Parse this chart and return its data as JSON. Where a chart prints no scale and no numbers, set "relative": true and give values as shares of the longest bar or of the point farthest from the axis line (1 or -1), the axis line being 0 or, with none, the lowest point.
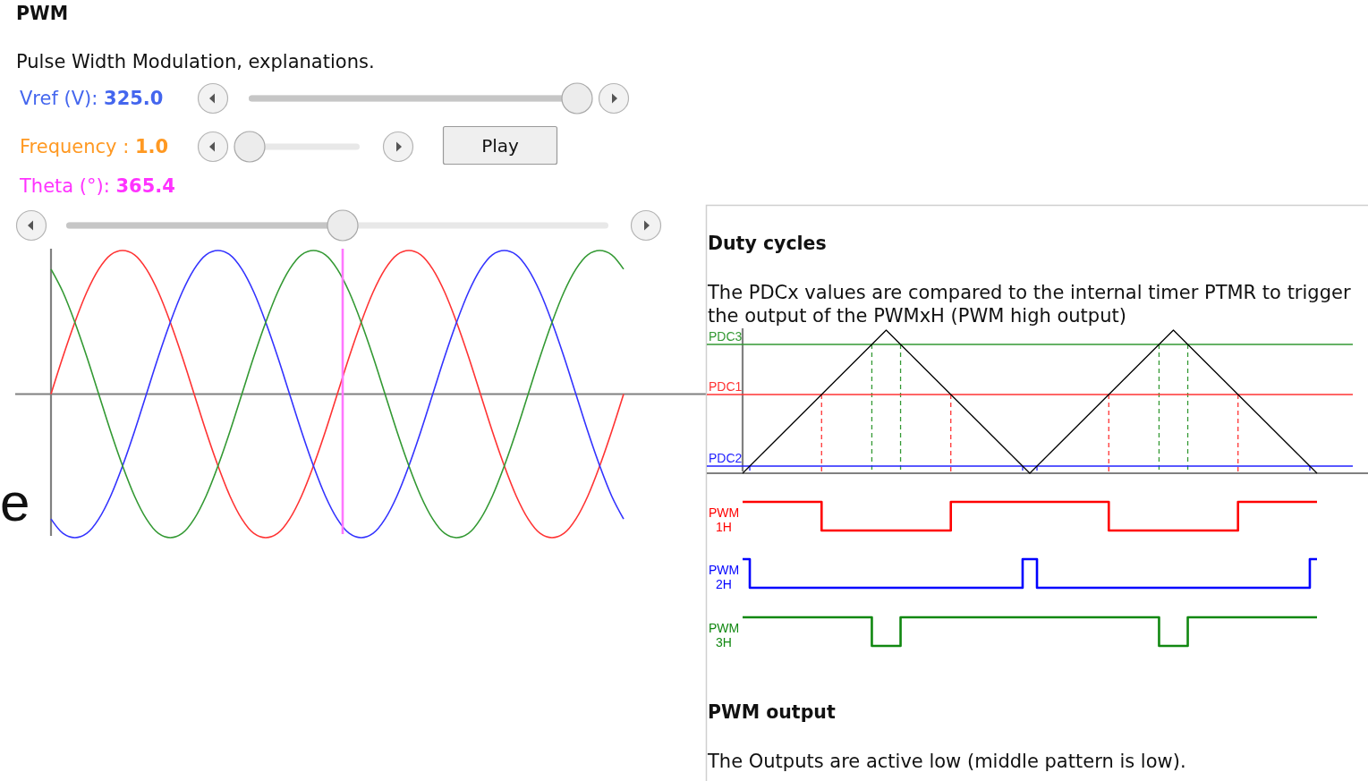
{
  "chart_data": [
    {
      "type": "line",
      "title": "PWM",
      "subtitle": "Pulse Width Modulation, explanations.",
      "annotations": [
        "Vref (V): 325.0",
        "Frequency : 1.0",
        "Theta (°): 365.4",
        "Play",
        "e"
      ],
      "relative": true,
      "categories": [
        null,
        null,
        null,
        null,
        null,
        null,
        null,
        null,
        null,
        null,
        null,
        null,
        null,
        null,
        null,
        null,
        null,
        null,
        null,
        null,
        null,
        null,
        null,
        null,
        null,
        null,
        null,
        null,
        null,
        null,
        null,
        null,
        null,
        null,
        null,
        null,
        null,
        null,
        null,
        null,
        null,
        null,
        null,
        null,
        null,
        null,
        null,
        null,
        null
      ],
      "series": [
        {
          "color": "#ff3333",
          "values": [
            0,
            0.26,
            0.5,
            0.71,
            0.87,
            0.97,
            1,
            0.97,
            0.87,
            0.71,
            0.5,
            0.26,
            0,
            -0.26,
            -0.5,
            -0.71,
            -0.87,
            -0.97,
            -1,
            -0.97,
            -0.87,
            -0.71,
            -0.5,
            -0.26,
            0,
            0.26,
            0.5,
            0.71,
            0.87,
            0.97,
            1,
            0.97,
            0.87,
            0.71,
            0.5,
            0.26,
            0,
            -0.26,
            -0.5,
            -0.71,
            -0.87,
            -0.97,
            -1,
            -0.97,
            -0.87,
            -0.71,
            -0.5,
            -0.26,
            0
          ]
        },
        {
          "color": "#3333ff",
          "values": [
            -0.87,
            -0.97,
            -1,
            -0.97,
            -0.87,
            -0.71,
            -0.5,
            -0.26,
            0,
            0.26,
            0.5,
            0.71,
            0.87,
            0.97,
            1,
            0.97,
            0.87,
            0.71,
            0.5,
            0.26,
            0,
            -0.26,
            -0.5,
            -0.71,
            -0.87,
            -0.97,
            -1,
            -0.97,
            -0.87,
            -0.71,
            -0.5,
            -0.26,
            0,
            0.26,
            0.5,
            0.71,
            0.87,
            0.97,
            1,
            0.97,
            0.87,
            0.71,
            0.5,
            0.26,
            0,
            -0.26,
            -0.5,
            -0.71,
            -0.87
          ]
        },
        {
          "color": "#339933",
          "values": [
            0.87,
            0.71,
            0.5,
            0.26,
            0,
            -0.26,
            -0.5,
            -0.71,
            -0.87,
            -0.97,
            -1,
            -0.97,
            -0.87,
            -0.71,
            -0.5,
            -0.26,
            0,
            0.26,
            0.5,
            0.71,
            0.87,
            0.97,
            1,
            0.97,
            0.87,
            0.71,
            0.5,
            0.26,
            0,
            -0.26,
            -0.5,
            -0.71,
            -0.87,
            -0.97,
            -1,
            -0.97,
            -0.87,
            -0.71,
            -0.5,
            -0.26,
            0,
            0.26,
            0.5,
            0.71,
            0.87,
            0.97,
            1,
            0.97,
            0.87
          ]
        }
      ]
    },
    {
      "type": "line",
      "title": "Duty cycles",
      "subtitle": "The PDCx values are compared to the internal timer PTMR to trigger the output of the PWMxH (PWM high output)",
      "relative": true,
      "grid": "x",
      "categories": [
        null,
        null,
        null,
        null,
        null,
        null,
        null,
        null,
        null,
        null,
        null,
        null,
        null,
        null,
        null,
        null,
        null,
        null,
        null,
        null,
        null,
        null,
        null,
        null,
        null,
        null,
        null,
        null,
        null,
        null,
        null,
        null,
        null,
        null,
        null,
        null,
        null,
        null,
        null,
        null,
        null,
        null,
        null,
        null,
        null,
        null,
        null,
        null,
        null,
        null,
        null,
        null,
        null,
        null,
        null,
        null,
        null,
        null,
        null,
        null,
        null,
        null,
        null,
        null,
        null,
        null,
        null,
        null,
        null,
        null,
        null,
        null,
        null,
        null,
        null,
        null,
        null,
        null,
        null,
        null,
        null
      ],
      "series": [
        {
          "color": "#000000",
          "values": [
            0,
            0.05,
            0.1,
            0.15,
            0.2,
            0.25,
            0.3,
            0.35,
            0.4,
            0.45,
            0.5,
            0.55,
            0.6,
            0.65,
            0.7,
            0.75,
            0.8,
            0.85,
            0.9,
            0.95,
            1,
            0.95,
            0.9,
            0.85,
            0.8,
            0.75,
            0.7,
            0.65,
            0.6,
            0.55,
            0.5,
            0.45,
            0.4,
            0.35,
            0.3,
            0.25,
            0.2,
            0.15,
            0.1,
            0.05,
            0,
            0.05,
            0.1,
            0.15,
            0.2,
            0.25,
            0.3,
            0.35,
            0.4,
            0.45,
            0.5,
            0.55,
            0.6,
            0.65,
            0.7,
            0.75,
            0.8,
            0.85,
            0.9,
            0.95,
            1,
            0.95,
            0.9,
            0.85,
            0.8,
            0.75,
            0.7,
            0.65,
            0.6,
            0.55,
            0.5,
            0.45,
            0.4,
            0.35,
            0.3,
            0.25,
            0.2,
            0.15,
            0.1,
            0.05,
            0
          ]
        }
      ],
      "ref_lines": [
        {
          "axis": "y",
          "value": 0.9,
          "label": "PDC3",
          "color": "#339933"
        },
        {
          "axis": "y",
          "value": 0.55,
          "label": "PDC1",
          "color": "#ff3333"
        },
        {
          "axis": "y",
          "value": 0.05,
          "label": "PDC2",
          "color": "#2222ff"
        }
      ]
    },
    {
      "type": "step",
      "relative": true,
      "categories": [
        null,
        null,
        null,
        null,
        null,
        null,
        null,
        null,
        null,
        null,
        null,
        null,
        null,
        null,
        null,
        null,
        null,
        null,
        null,
        null,
        null,
        null,
        null,
        null,
        null,
        null,
        null,
        null,
        null,
        null,
        null,
        null,
        null,
        null,
        null,
        null,
        null,
        null,
        null,
        null,
        null,
        null,
        null,
        null,
        null,
        null,
        null,
        null,
        null,
        null,
        null,
        null,
        null,
        null,
        null,
        null,
        null,
        null,
        null,
        null,
        null,
        null,
        null,
        null,
        null,
        null,
        null,
        null,
        null,
        null,
        null,
        null,
        null,
        null,
        null,
        null,
        null,
        null,
        null,
        null,
        null
      ],
      "series": [
        {
          "name": "PWM 1H",
          "color": "#ff0000",
          "values": [
            1,
            1,
            1,
            1,
            1,
            1,
            1,
            1,
            1,
            1,
            1,
            0,
            0,
            0,
            0,
            0,
            0,
            0,
            0,
            0,
            0,
            0,
            0,
            0,
            0,
            0,
            0,
            0,
            0,
            1,
            1,
            1,
            1,
            1,
            1,
            1,
            1,
            1,
            1,
            1,
            1,
            1,
            1,
            1,
            1,
            1,
            1,
            1,
            1,
            1,
            1,
            0,
            0,
            0,
            0,
            0,
            0,
            0,
            0,
            0,
            0,
            0,
            0,
            0,
            0,
            0,
            0,
            0,
            0,
            1,
            1,
            1,
            1,
            1,
            1,
            1,
            1,
            1,
            1,
            1,
            1
          ]
        }
      ]
    },
    {
      "type": "step",
      "relative": true,
      "categories": [
        null,
        null,
        null,
        null,
        null,
        null,
        null,
        null,
        null,
        null,
        null,
        null,
        null,
        null,
        null,
        null,
        null,
        null,
        null,
        null,
        null,
        null,
        null,
        null,
        null,
        null,
        null,
        null,
        null,
        null,
        null,
        null,
        null,
        null,
        null,
        null,
        null,
        null,
        null,
        null,
        null,
        null,
        null,
        null,
        null,
        null,
        null,
        null,
        null,
        null,
        null,
        null,
        null,
        null,
        null,
        null,
        null,
        null,
        null,
        null,
        null,
        null,
        null,
        null,
        null,
        null,
        null,
        null,
        null,
        null,
        null,
        null,
        null,
        null,
        null,
        null,
        null,
        null,
        null,
        null,
        null
      ],
      "series": [
        {
          "name": "PWM 2H",
          "color": "#0000ff",
          "values": [
            1,
            0,
            0,
            0,
            0,
            0,
            0,
            0,
            0,
            0,
            0,
            0,
            0,
            0,
            0,
            0,
            0,
            0,
            0,
            0,
            0,
            0,
            0,
            0,
            0,
            0,
            0,
            0,
            0,
            0,
            0,
            0,
            0,
            0,
            0,
            0,
            0,
            0,
            0,
            1,
            1,
            0,
            0,
            0,
            0,
            0,
            0,
            0,
            0,
            0,
            0,
            0,
            0,
            0,
            0,
            0,
            0,
            0,
            0,
            0,
            0,
            0,
            0,
            0,
            0,
            0,
            0,
            0,
            0,
            0,
            0,
            0,
            0,
            0,
            0,
            0,
            0,
            0,
            0,
            1,
            1
          ]
        }
      ]
    },
    {
      "type": "step",
      "relative": true,
      "categories": [
        null,
        null,
        null,
        null,
        null,
        null,
        null,
        null,
        null,
        null,
        null,
        null,
        null,
        null,
        null,
        null,
        null,
        null,
        null,
        null,
        null,
        null,
        null,
        null,
        null,
        null,
        null,
        null,
        null,
        null,
        null,
        null,
        null,
        null,
        null,
        null,
        null,
        null,
        null,
        null,
        null,
        null,
        null,
        null,
        null,
        null,
        null,
        null,
        null,
        null,
        null,
        null,
        null,
        null,
        null,
        null,
        null,
        null,
        null,
        null,
        null,
        null,
        null,
        null,
        null,
        null,
        null,
        null,
        null,
        null,
        null,
        null,
        null,
        null,
        null,
        null,
        null,
        null,
        null,
        null,
        null
      ],
      "series": [
        {
          "name": "PWM 3H",
          "color": "#118811",
          "values": [
            1,
            1,
            1,
            1,
            1,
            1,
            1,
            1,
            1,
            1,
            1,
            1,
            1,
            1,
            1,
            1,
            1,
            1,
            0,
            0,
            0,
            0,
            1,
            1,
            1,
            1,
            1,
            1,
            1,
            1,
            1,
            1,
            1,
            1,
            1,
            1,
            1,
            1,
            1,
            1,
            1,
            1,
            1,
            1,
            1,
            1,
            1,
            1,
            1,
            1,
            1,
            1,
            1,
            1,
            1,
            1,
            1,
            1,
            0,
            0,
            0,
            0,
            1,
            1,
            1,
            1,
            1,
            1,
            1,
            1,
            1,
            1,
            1,
            1,
            1,
            1,
            1,
            1,
            1,
            1,
            1
          ]
        }
      ]
    },
    {
      "type": "other",
      "title": "PWM output",
      "subtitle": "The Outputs are active low (middle pattern is low)."
    }
  ]
}
